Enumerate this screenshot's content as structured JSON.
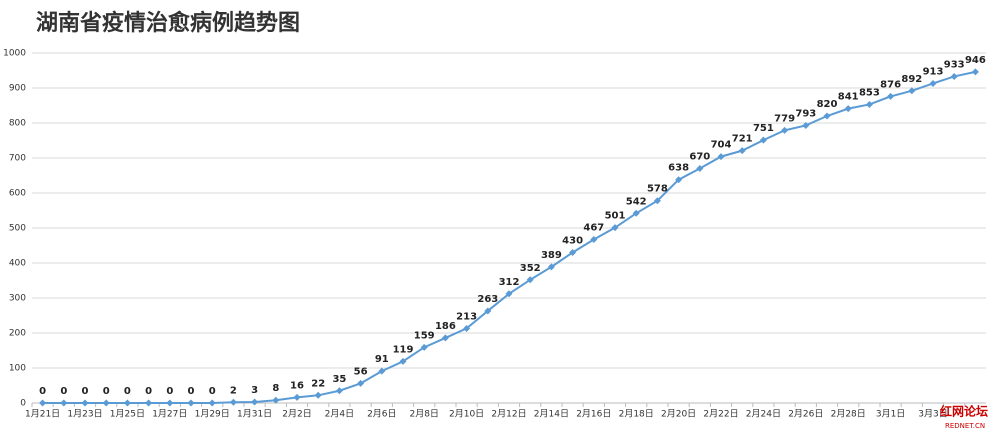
{
  "chart_data": {
    "type": "line",
    "title": "湖南省疫情治愈病例趋势图",
    "categories": [
      "1月21日",
      null,
      "1月23日",
      null,
      "1月25日",
      null,
      "1月27日",
      null,
      "1月29日",
      null,
      "1月31日",
      null,
      "2月2日",
      null,
      "2月4日",
      null,
      "2月6日",
      null,
      "2月8日",
      null,
      "2月10日",
      null,
      "2月12日",
      null,
      "2月14日",
      null,
      "2月16日",
      null,
      "2月18日",
      null,
      "2月20日",
      null,
      "2月22日",
      null,
      "2月24日",
      null,
      "2月26日",
      null,
      "2月28日",
      null,
      "3月1日",
      null,
      "3月3日",
      null,
      null
    ],
    "values": [
      0,
      0,
      0,
      0,
      0,
      0,
      0,
      0,
      0,
      2,
      3,
      8,
      16,
      22,
      35,
      56,
      91,
      119,
      159,
      186,
      213,
      263,
      312,
      352,
      389,
      430,
      467,
      501,
      542,
      578,
      638,
      670,
      704,
      721,
      751,
      779,
      793,
      820,
      841,
      853,
      876,
      892,
      913,
      933,
      946
    ],
    "color": "#5b9bd5",
    "ylim": [
      0,
      1000
    ],
    "yticks": [
      0,
      100,
      200,
      300,
      400,
      500,
      600,
      700,
      800,
      900,
      1000
    ],
    "grid": true,
    "watermark": "红网论坛",
    "watermark_url": "REDNET.CN"
  }
}
